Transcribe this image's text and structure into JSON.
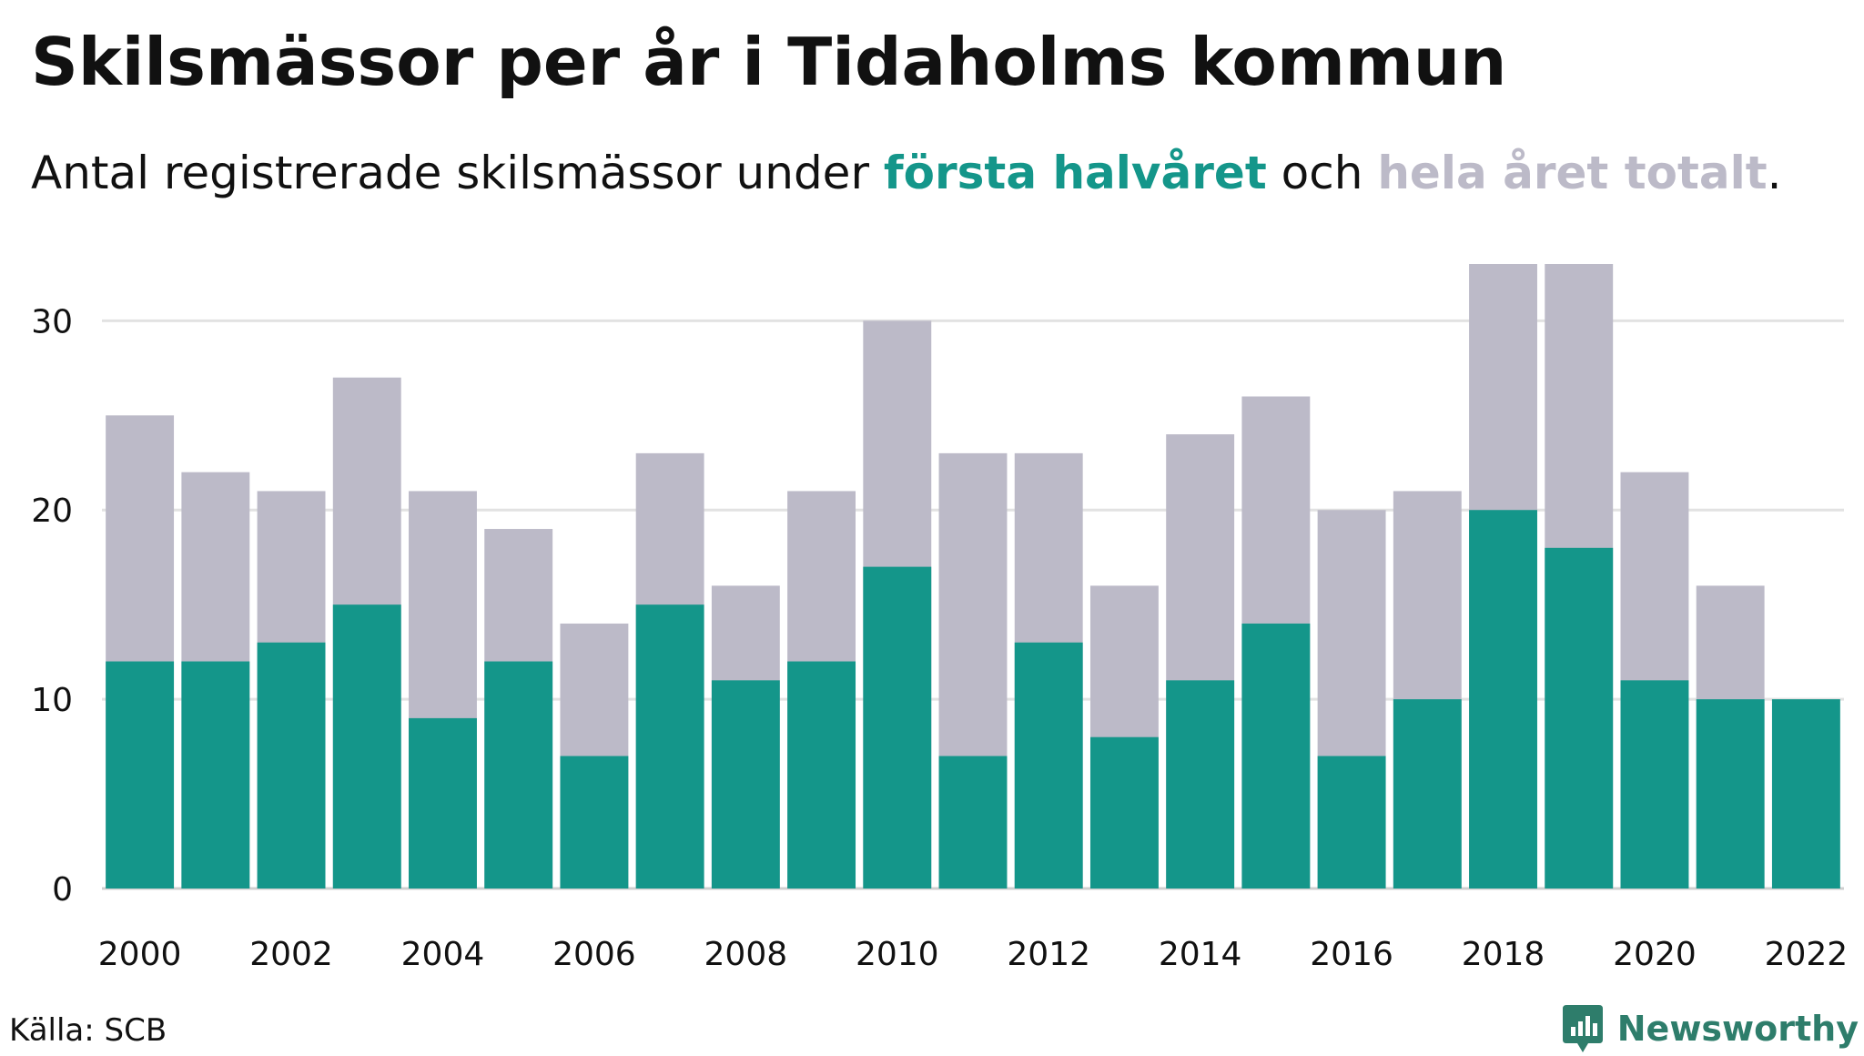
{
  "title": "Skilsmässor per år i Tidaholms kommun",
  "subtitle": {
    "prefix": "Antal registrerade skilsmässor under ",
    "highlight1": "första halvåret",
    "middle": " och ",
    "highlight2": "hela året totalt",
    "suffix": "."
  },
  "source": "Källa: SCB",
  "brand": {
    "name": "Newsworthy",
    "icon": "newsworthy-logo-icon"
  },
  "colors": {
    "first_half": "#14968a",
    "full_year": "#bcbac8",
    "grid": "#e2e2e2",
    "text": "#111111",
    "brand": "#2e7d6b"
  },
  "chart_data": {
    "type": "bar",
    "stacking": "overlay",
    "categories": [
      "2000",
      "2001",
      "2002",
      "2003",
      "2004",
      "2005",
      "2006",
      "2007",
      "2008",
      "2009",
      "2010",
      "2011",
      "2012",
      "2013",
      "2014",
      "2015",
      "2016",
      "2017",
      "2018",
      "2019",
      "2020",
      "2021",
      "2022"
    ],
    "series": [
      {
        "name": "hela året totalt",
        "values": [
          25,
          22,
          21,
          27,
          21,
          19,
          14,
          23,
          16,
          21,
          30,
          23,
          23,
          16,
          24,
          26,
          20,
          21,
          33,
          33,
          22,
          16,
          null
        ]
      },
      {
        "name": "första halvåret",
        "values": [
          12,
          12,
          13,
          15,
          9,
          12,
          7,
          15,
          11,
          12,
          17,
          7,
          13,
          8,
          11,
          14,
          7,
          10,
          20,
          18,
          11,
          10,
          10
        ]
      }
    ],
    "x_tick_labels": [
      "2000",
      "2002",
      "2004",
      "2006",
      "2008",
      "2010",
      "2012",
      "2014",
      "2016",
      "2018",
      "2020",
      "2022"
    ],
    "y_ticks": [
      0,
      10,
      20,
      30
    ],
    "ylim": [
      0,
      33
    ],
    "grid": "horizontal",
    "legend": "in subtitle",
    "xlabel": "",
    "ylabel": ""
  }
}
